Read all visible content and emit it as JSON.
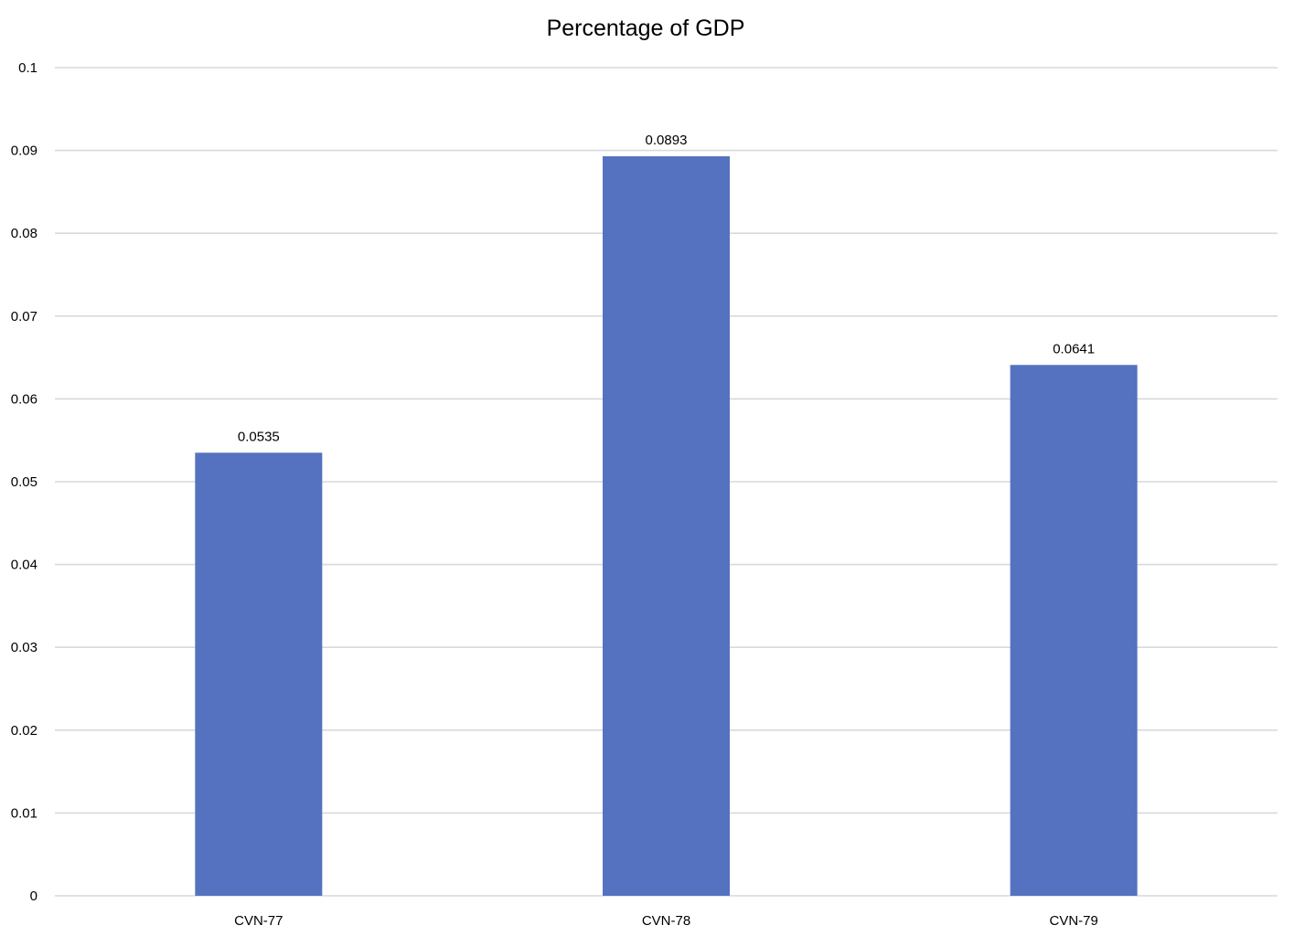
{
  "chart_data": {
    "type": "bar",
    "title": "Percentage of GDP",
    "xlabel": "",
    "ylabel": "",
    "categories": [
      "CVN-77",
      "CVN-78",
      "CVN-79"
    ],
    "values": [
      0.0535,
      0.0893,
      0.0641
    ],
    "data_labels": [
      "0.0535",
      "0.0893",
      "0.0641"
    ],
    "ylim": [
      0,
      0.1
    ],
    "y_ticks": [
      0,
      0.01,
      0.02,
      0.03,
      0.04,
      0.05,
      0.06,
      0.07,
      0.08,
      0.09,
      0.1
    ],
    "y_tick_labels": [
      "0",
      "0.01",
      "0.02",
      "0.03",
      "0.04",
      "0.05",
      "0.06",
      "0.07",
      "0.08",
      "0.09",
      "0.1"
    ],
    "grid": true,
    "legend": "none",
    "bar_color": "#5572c0",
    "grid_color": "#d9d9d9"
  }
}
